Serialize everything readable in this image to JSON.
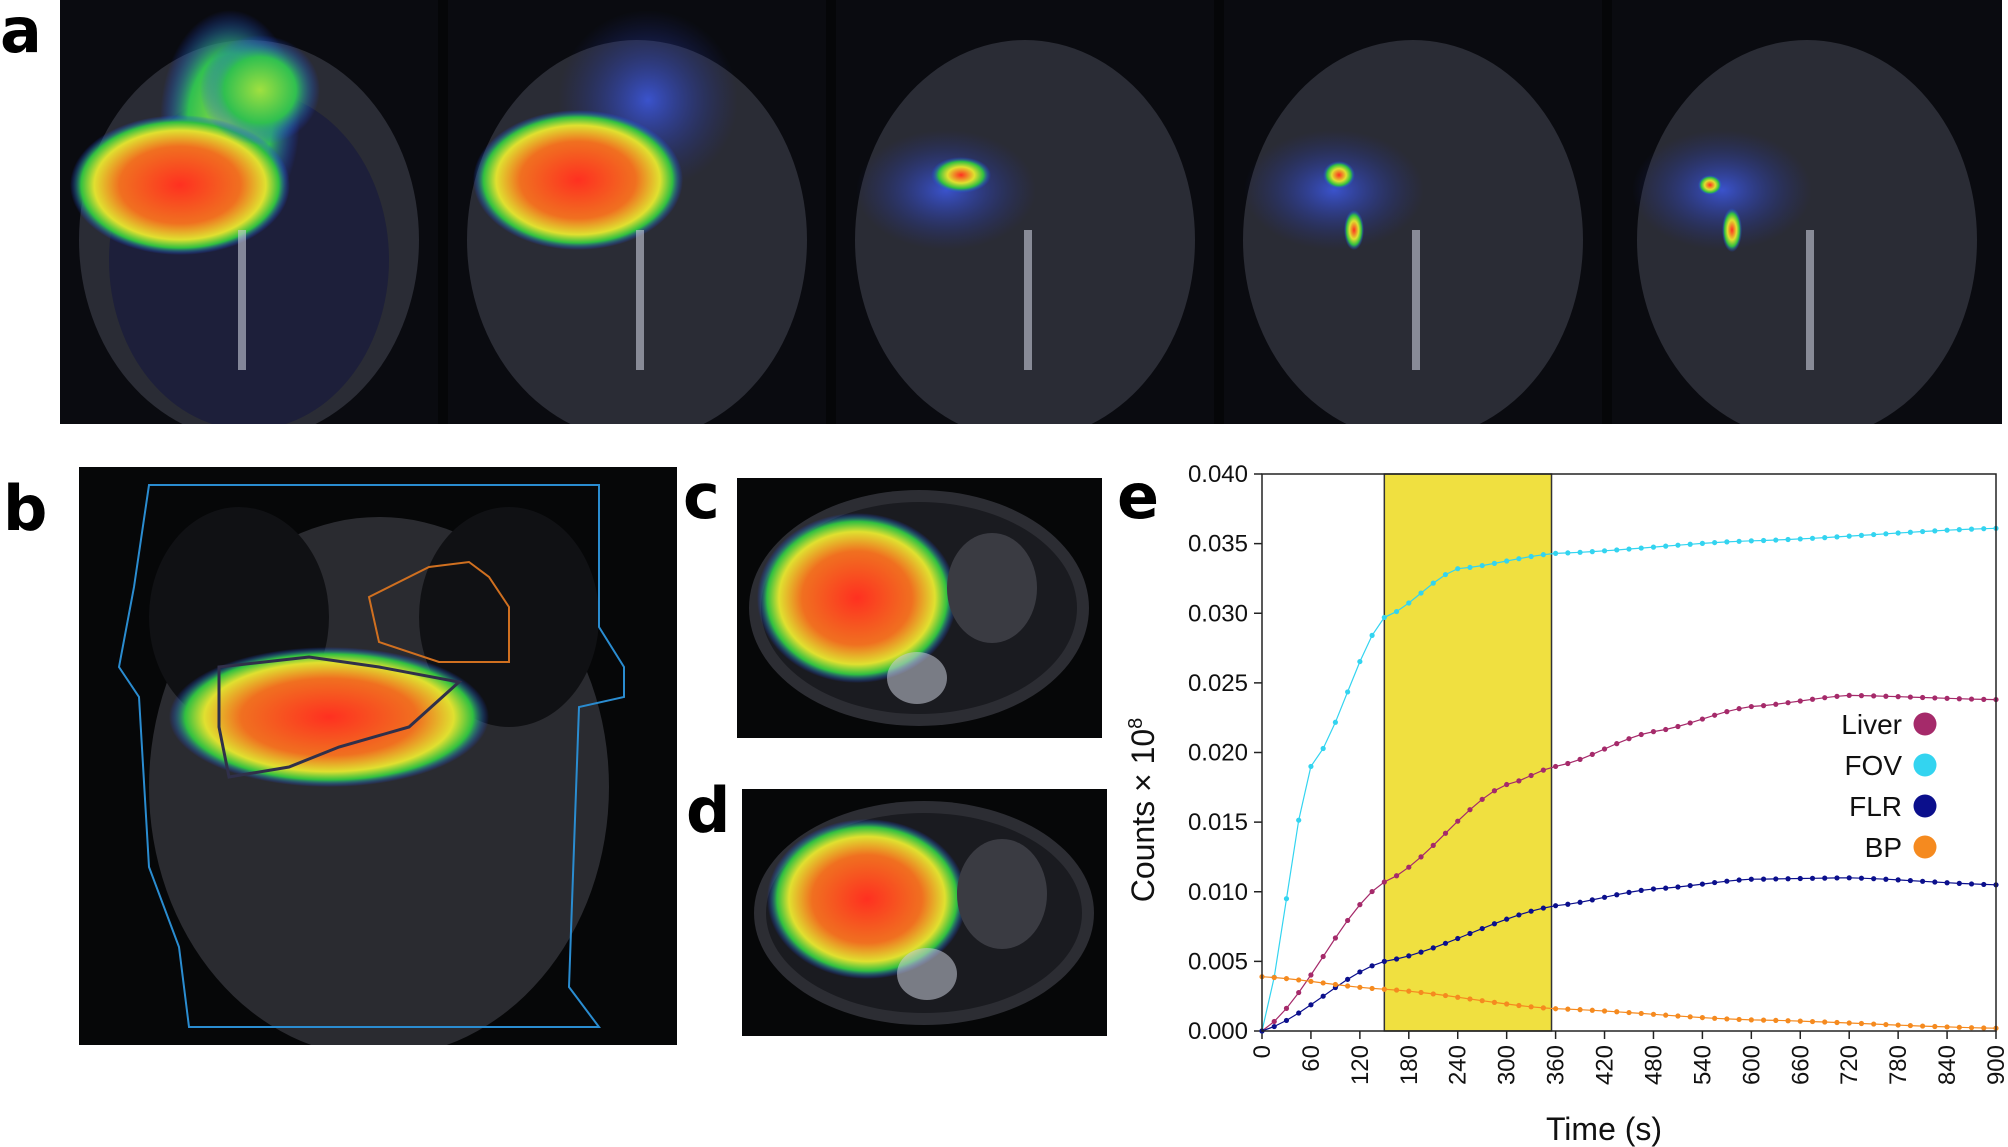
{
  "panels": {
    "a": "a",
    "b": "b",
    "c": "c",
    "d": "d",
    "e": "e"
  },
  "colors": {
    "liver": "#a52a6a",
    "fov": "#33d4f0",
    "flr": "#0b0f8c",
    "bp": "#f58a1f",
    "window": "#f0e040",
    "body_contour": "#2a8cd0",
    "heart_contour": "#d07020"
  },
  "chart_data": {
    "type": "line",
    "xlabel": "Time (s)",
    "ylabel": "Counts × 10",
    "ylabel_exponent": "8",
    "xlim": [
      0,
      900
    ],
    "ylim": [
      0,
      0.04
    ],
    "x_ticks": [
      0,
      60,
      120,
      180,
      240,
      300,
      360,
      420,
      480,
      540,
      600,
      660,
      720,
      780,
      840,
      900
    ],
    "y_ticks": [
      "0.000",
      "0.005",
      "0.010",
      "0.015",
      "0.020",
      "0.025",
      "0.030",
      "0.035",
      "0.040"
    ],
    "highlight_window": [
      150,
      355
    ],
    "legend_position": "right-middle",
    "series": [
      {
        "name": "Liver",
        "color": "#a52a6a",
        "asymptote": 0.0242,
        "tau": 260,
        "decay": 0.0
      },
      {
        "name": "FOV",
        "color": "#33d4f0",
        "asymptote": 0.0345,
        "tau": 75,
        "decay": 0.0
      },
      {
        "name": "FLR",
        "color": "#0b0f8c",
        "asymptote": 0.0111,
        "tau": 230,
        "decay": 0.0
      },
      {
        "name": "BP",
        "color": "#f58a1f",
        "start": 0.0039,
        "end": 0.0002
      }
    ],
    "sample_points": {
      "Liver": [
        [
          0,
          0.0
        ],
        [
          150,
          0.0107
        ],
        [
          300,
          0.0177
        ],
        [
          360,
          0.019
        ],
        [
          480,
          0.0215
        ],
        [
          600,
          0.0233
        ],
        [
          720,
          0.0241
        ],
        [
          900,
          0.0238
        ]
      ],
      "FOV": [
        [
          0,
          0.0
        ],
        [
          60,
          0.019
        ],
        [
          150,
          0.0297
        ],
        [
          240,
          0.0332
        ],
        [
          360,
          0.0343
        ],
        [
          600,
          0.0352
        ],
        [
          900,
          0.0361
        ]
      ],
      "FLR": [
        [
          0,
          0.0
        ],
        [
          150,
          0.005
        ],
        [
          360,
          0.009
        ],
        [
          480,
          0.0102
        ],
        [
          600,
          0.0109
        ],
        [
          720,
          0.011
        ],
        [
          900,
          0.0105
        ]
      ],
      "BP": [
        [
          0,
          0.0039
        ],
        [
          150,
          0.003
        ],
        [
          360,
          0.0016
        ],
        [
          600,
          0.0008
        ],
        [
          900,
          0.0002
        ]
      ]
    }
  }
}
